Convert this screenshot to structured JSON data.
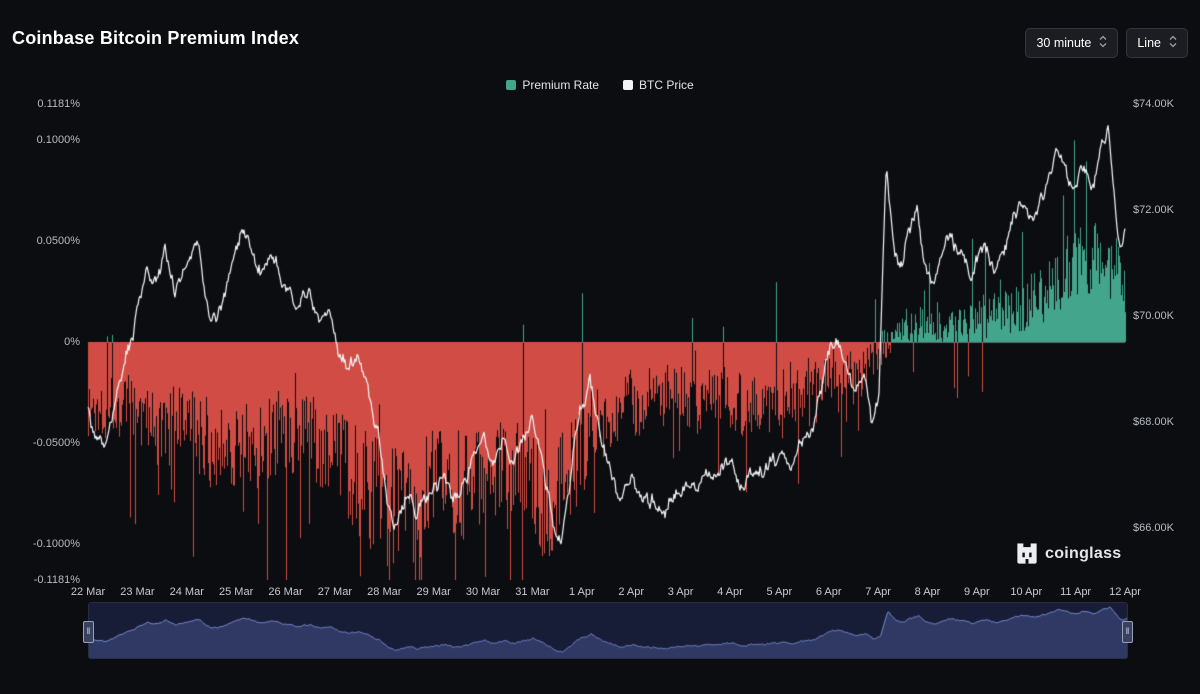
{
  "header": {
    "title": "Coinbase Bitcoin Premium Index",
    "interval_value": "30 minute",
    "chart_type_value": "Line"
  },
  "watermark": {
    "text": "coinglass"
  },
  "chart_data": {
    "type": "area+line",
    "title": "Coinbase Bitcoin Premium Index",
    "x_unit": "days since 22 Mar, 30-minute candles",
    "x_range_days": 21.5,
    "x_tick_labels": [
      "22 Mar",
      "23 Mar",
      "24 Mar",
      "25 Mar",
      "26 Mar",
      "27 Mar",
      "28 Mar",
      "29 Mar",
      "30 Mar",
      "31 Mar",
      "1 Apr",
      "2 Apr",
      "3 Apr",
      "4 Apr",
      "5 Apr",
      "6 Apr",
      "7 Apr",
      "8 Apr",
      "9 Apr",
      "10 Apr",
      "11 Apr",
      "12 Apr"
    ],
    "legend_position": "top-center",
    "grid": "zero-line-only",
    "left_axis": {
      "title": "Premium Rate",
      "min": -0.1181,
      "max": 0.1181,
      "ticks": [
        {
          "v": 0.1181,
          "label": "0.1181%"
        },
        {
          "v": 0.1,
          "label": "0.1000%"
        },
        {
          "v": 0.05,
          "label": "0.0500%"
        },
        {
          "v": 0,
          "label": "0%"
        },
        {
          "v": -0.05,
          "label": "-0.0500%"
        },
        {
          "v": -0.1,
          "label": "-0.1000%"
        },
        {
          "v": -0.1181,
          "label": "-0.1181%"
        }
      ]
    },
    "right_axis": {
      "title": "BTC Price",
      "min": 65.02,
      "max": 74,
      "ticks": [
        {
          "v": 74,
          "label": "$74.00K"
        },
        {
          "v": 72,
          "label": "$72.00K"
        },
        {
          "v": 70,
          "label": "$70.00K"
        },
        {
          "v": 68,
          "label": "$68.00K"
        },
        {
          "v": 66,
          "label": "$66.00K"
        }
      ]
    },
    "series": [
      {
        "name": "Premium Rate",
        "type": "area",
        "axis": "left",
        "unit": "%",
        "color_positive": "#43a58c",
        "color_negative": "#d14c45",
        "anchors": [
          [
            0,
            -0.035
          ],
          [
            0.5,
            -0.03
          ],
          [
            1,
            -0.035
          ],
          [
            1.5,
            -0.045
          ],
          [
            2,
            -0.04
          ],
          [
            2.5,
            -0.05
          ],
          [
            3,
            -0.05
          ],
          [
            3.5,
            -0.055
          ],
          [
            4,
            -0.042
          ],
          [
            4.5,
            -0.048
          ],
          [
            5,
            -0.055
          ],
          [
            5.5,
            -0.065
          ],
          [
            6,
            -0.078
          ],
          [
            6.5,
            -0.082
          ],
          [
            7,
            -0.075
          ],
          [
            7.5,
            -0.07
          ],
          [
            8,
            -0.072
          ],
          [
            8.5,
            -0.065
          ],
          [
            9,
            -0.068
          ],
          [
            9.5,
            -0.078
          ],
          [
            10,
            -0.062
          ],
          [
            10.5,
            -0.042
          ],
          [
            11,
            -0.032
          ],
          [
            11.5,
            -0.03
          ],
          [
            12,
            -0.026
          ],
          [
            12.5,
            -0.03
          ],
          [
            13,
            -0.026
          ],
          [
            13.5,
            -0.03
          ],
          [
            14,
            -0.03
          ],
          [
            14.5,
            -0.026
          ],
          [
            15,
            -0.02
          ],
          [
            15.5,
            -0.014
          ],
          [
            16,
            -0.02
          ],
          [
            16.5,
            -0.002
          ],
          [
            17,
            0.008
          ],
          [
            17.5,
            0.01
          ],
          [
            18,
            0.008
          ],
          [
            18.5,
            0.012
          ],
          [
            19,
            0.014
          ],
          [
            19.5,
            0.02
          ],
          [
            20,
            0.028
          ],
          [
            20.5,
            0.04
          ],
          [
            21,
            0.042
          ],
          [
            21.5,
            0.03
          ]
        ]
      },
      {
        "name": "BTC Price",
        "type": "line",
        "axis": "right",
        "unit": "K USD",
        "color": "#f2f3f5",
        "anchors": [
          [
            0,
            68.3
          ],
          [
            0.2,
            67.9
          ],
          [
            0.4,
            67.6
          ],
          [
            0.6,
            68.4
          ],
          [
            0.8,
            69.0
          ],
          [
            1,
            69.9
          ],
          [
            1.2,
            70.9
          ],
          [
            1.4,
            70.4
          ],
          [
            1.6,
            71.0
          ],
          [
            1.8,
            70.5
          ],
          [
            2,
            70.9
          ],
          [
            2.3,
            71.2
          ],
          [
            2.5,
            70.2
          ],
          [
            2.7,
            70.1
          ],
          [
            3,
            70.9
          ],
          [
            3.2,
            71.7
          ],
          [
            3.4,
            71.1
          ],
          [
            3.6,
            70.8
          ],
          [
            3.8,
            71.1
          ],
          [
            4,
            70.6
          ],
          [
            4.3,
            70.2
          ],
          [
            4.6,
            70.5
          ],
          [
            5,
            69.9
          ],
          [
            5.2,
            69.2
          ],
          [
            5.4,
            68.9
          ],
          [
            5.6,
            69.3
          ],
          [
            5.8,
            68.5
          ],
          [
            6,
            67.8
          ],
          [
            6.2,
            66.5
          ],
          [
            6.4,
            66.0
          ],
          [
            6.6,
            66.5
          ],
          [
            6.8,
            66.2
          ],
          [
            7,
            66.5
          ],
          [
            7.3,
            66.9
          ],
          [
            7.6,
            66.6
          ],
          [
            8,
            67.3
          ],
          [
            8.2,
            67.9
          ],
          [
            8.4,
            67.2
          ],
          [
            8.6,
            67.9
          ],
          [
            8.8,
            67.4
          ],
          [
            9,
            67.8
          ],
          [
            9.2,
            68.1
          ],
          [
            9.4,
            67.2
          ],
          [
            9.6,
            66.2
          ],
          [
            9.8,
            65.6
          ],
          [
            10,
            66.9
          ],
          [
            10.2,
            68.3
          ],
          [
            10.4,
            68.6
          ],
          [
            10.6,
            67.8
          ],
          [
            10.8,
            67.1
          ],
          [
            11,
            66.6
          ],
          [
            11.3,
            66.9
          ],
          [
            11.6,
            66.5
          ],
          [
            12,
            66.6
          ],
          [
            12.3,
            66.9
          ],
          [
            12.6,
            66.7
          ],
          [
            13,
            67.0
          ],
          [
            13.3,
            67.3
          ],
          [
            13.6,
            66.9
          ],
          [
            14,
            67.1
          ],
          [
            14.3,
            67.3
          ],
          [
            14.6,
            67.1
          ],
          [
            15,
            67.7
          ],
          [
            15.3,
            68.9
          ],
          [
            15.5,
            69.7
          ],
          [
            15.7,
            69.1
          ],
          [
            15.9,
            68.7
          ],
          [
            16.1,
            68.9
          ],
          [
            16.25,
            67.9
          ],
          [
            16.4,
            68.4
          ],
          [
            16.55,
            72.7
          ],
          [
            16.7,
            71.3
          ],
          [
            16.85,
            70.9
          ],
          [
            17,
            71.5
          ],
          [
            17.2,
            71.9
          ],
          [
            17.35,
            71.0
          ],
          [
            17.55,
            70.8
          ],
          [
            17.8,
            71.3
          ],
          [
            18,
            71.0
          ],
          [
            18.3,
            70.7
          ],
          [
            18.6,
            71.3
          ],
          [
            18.8,
            71.0
          ],
          [
            19,
            71.5
          ],
          [
            19.3,
            72.0
          ],
          [
            19.6,
            71.7
          ],
          [
            19.8,
            72.2
          ],
          [
            20,
            72.6
          ],
          [
            20.2,
            72.9
          ],
          [
            20.4,
            72.3
          ],
          [
            20.6,
            72.8
          ],
          [
            20.8,
            72.5
          ],
          [
            21,
            73.1
          ],
          [
            21.15,
            73.6
          ],
          [
            21.3,
            72.1
          ],
          [
            21.4,
            71.6
          ],
          [
            21.5,
            71.8
          ]
        ]
      }
    ],
    "navigator": {
      "bg": "#171d36",
      "fill": "rgba(93,112,185,0.35)",
      "line": "#8193d6"
    },
    "zero_line_color": "#5f6267"
  }
}
